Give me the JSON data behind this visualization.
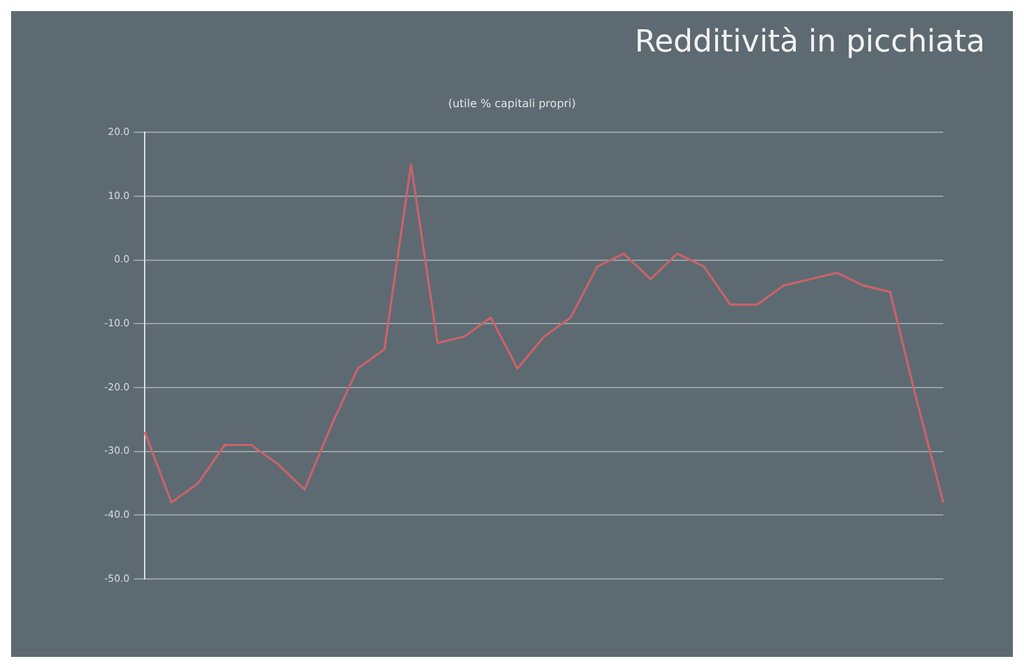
{
  "chart_data": {
    "type": "line",
    "title": "Redditività in picchiata",
    "subtitle": "(utile % capitali propri)",
    "categories": [
      null,
      null,
      null,
      null,
      null,
      null,
      null,
      null,
      null,
      null,
      null,
      null,
      null,
      null,
      null,
      null,
      null,
      null,
      null,
      null,
      null,
      null,
      null,
      null,
      null,
      null,
      null,
      null,
      null,
      null,
      null
    ],
    "values": [
      -27,
      -38,
      -35,
      -29,
      -29,
      -32,
      -36,
      -26,
      -17,
      -14,
      15,
      -13,
      -12,
      -9,
      -17,
      -12,
      -9,
      -1,
      1,
      -3,
      1,
      -1,
      -7,
      -7,
      -4,
      -3,
      -2,
      -4,
      -5,
      -22,
      -38
    ],
    "color": "#c9626c",
    "ylim": [
      -50,
      20
    ],
    "yticks": [
      {
        "value": 20,
        "label": "20.0"
      },
      {
        "value": 10,
        "label": "10.0"
      },
      {
        "value": 0,
        "label": "0.0"
      },
      {
        "value": -10,
        "label": "-10.0"
      },
      {
        "value": -20,
        "label": "-20.0"
      },
      {
        "value": -30,
        "label": "-30.0"
      },
      {
        "value": -40,
        "label": "-40.0"
      },
      {
        "value": -50,
        "label": "-50.0"
      }
    ],
    "grid": "y",
    "marker": "none",
    "line_style": "solid"
  }
}
